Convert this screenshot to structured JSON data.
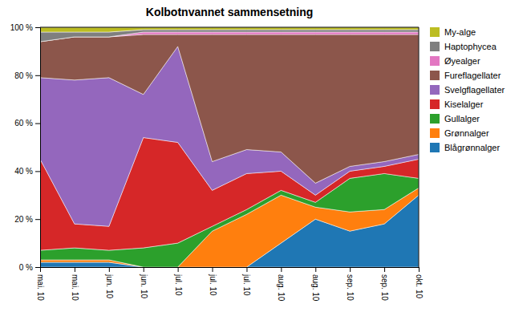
{
  "chart_data": {
    "type": "area",
    "title": "Kolbotnvannet sammensetning",
    "categories": [
      "mai. 10",
      "mai. 10",
      "jun. 10",
      "jun. 10",
      "jul. 10",
      "jul. 10",
      "jul. 10",
      "aug. 10",
      "aug. 10",
      "sep. 10",
      "sep. 10",
      "okt. 10"
    ],
    "series": [
      {
        "name": "Blågrønnalger",
        "values": [
          2,
          2,
          2,
          0,
          0,
          0,
          0,
          10,
          20,
          15,
          18,
          30
        ]
      },
      {
        "name": "Grønnalger",
        "values": [
          1,
          1,
          1,
          0,
          0,
          15,
          22,
          20,
          5,
          8,
          6,
          3
        ]
      },
      {
        "name": "Gullalger",
        "values": [
          4,
          5,
          4,
          8,
          10,
          2,
          2,
          2,
          2,
          14,
          15,
          4
        ]
      },
      {
        "name": "Kiselalger",
        "values": [
          38,
          10,
          10,
          46,
          42,
          15,
          15,
          8,
          3,
          3,
          3,
          8
        ]
      },
      {
        "name": "Svelgflagellater",
        "values": [
          34,
          60,
          62,
          18,
          40,
          12,
          10,
          8,
          5,
          2,
          2,
          2
        ]
      },
      {
        "name": "Fureflagellater",
        "values": [
          15,
          18,
          17,
          25,
          5,
          53,
          48,
          49,
          62,
          55,
          53,
          50
        ]
      },
      {
        "name": "Øyealger",
        "values": [
          0,
          0,
          0,
          1,
          1,
          1,
          1,
          1,
          1,
          1,
          1,
          1
        ]
      },
      {
        "name": "Haptophycea",
        "values": [
          4,
          2,
          2,
          1,
          1,
          1,
          1,
          1,
          1,
          1,
          1,
          1
        ]
      },
      {
        "name": "My-alge",
        "values": [
          2,
          2,
          2,
          1,
          1,
          1,
          1,
          1,
          1,
          1,
          1,
          1
        ]
      }
    ],
    "stacked": true,
    "ylim": [
      0,
      100
    ],
    "yticks": [
      {
        "value": 0,
        "label": "0 %"
      },
      {
        "value": 20,
        "label": "20 %"
      },
      {
        "value": 40,
        "label": "40 %"
      },
      {
        "value": 60,
        "label": "60 %"
      },
      {
        "value": 80,
        "label": "80 %"
      },
      {
        "value": 100,
        "label": "100 %"
      }
    ],
    "grid": false,
    "legend": "right"
  }
}
